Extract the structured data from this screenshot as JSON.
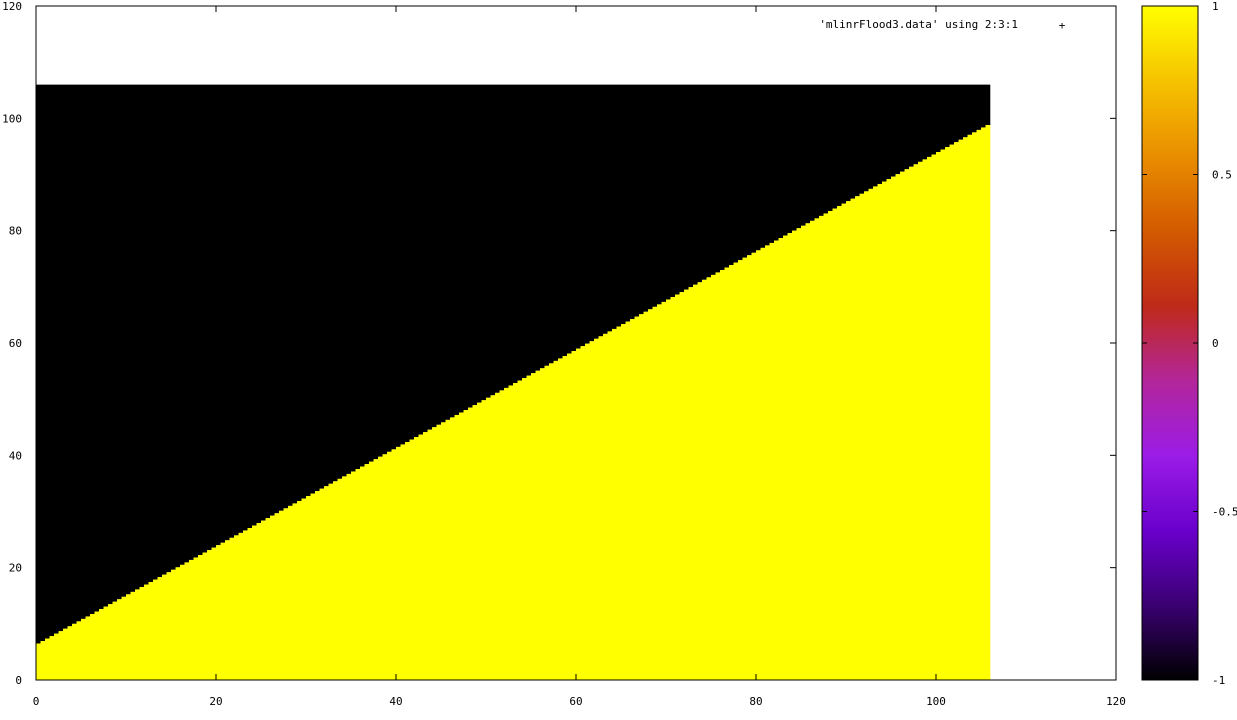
{
  "chart_data": {
    "type": "heatmap",
    "title": "",
    "xlabel": "",
    "ylabel": "",
    "legend": {
      "label": "'mlinrFlood3.data' using 2:3:1",
      "placement": "top-right",
      "marker": "+"
    },
    "xlim": [
      0,
      120
    ],
    "ylim": [
      0,
      120
    ],
    "xticks": [
      "0",
      "20",
      "40",
      "60",
      "80",
      "100",
      "120"
    ],
    "xtick_values": [
      0,
      20,
      40,
      60,
      80,
      100,
      120
    ],
    "yticks": [
      "0",
      "20",
      "40",
      "60",
      "80",
      "100",
      "120"
    ],
    "ytick_values": [
      0,
      20,
      40,
      60,
      80,
      100,
      120
    ],
    "grid": false,
    "data_region": {
      "x": [
        0,
        106
      ],
      "y": [
        0,
        106
      ]
    },
    "boundary": {
      "slope": 0.875,
      "intercept": 6.5,
      "description": "value 1 below y = 0.875*x + 6.5, value -1 above"
    },
    "regions": [
      {
        "name": "below-boundary",
        "value": 1,
        "color": "#ffff00"
      },
      {
        "name": "above-boundary",
        "value": -1,
        "color": "#000000"
      }
    ],
    "colorbar": {
      "range": [
        -1,
        1
      ],
      "ticks": [
        "1",
        "0.5",
        "0",
        "-0.5",
        "-1"
      ],
      "tick_values": [
        1,
        0.5,
        0,
        -0.5,
        -1
      ],
      "palette": [
        "#000000",
        "#3a0072",
        "#6a00cc",
        "#9b1ce6",
        "#b3269a",
        "#bf2a18",
        "#d35a00",
        "#e98e00",
        "#f6c300",
        "#ffff00"
      ]
    }
  }
}
